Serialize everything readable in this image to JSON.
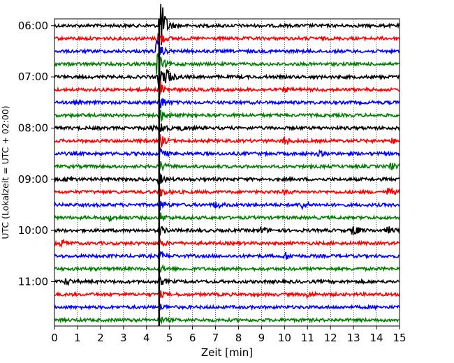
{
  "chart_data": {
    "type": "line",
    "title": "",
    "xlabel": "Zeit  [min]",
    "ylabel": "UTC (Lokalzeit = UTC + 02:00)",
    "xlim": [
      0,
      15
    ],
    "x_ticks": [
      0,
      1,
      2,
      3,
      4,
      5,
      6,
      7,
      8,
      9,
      10,
      11,
      12,
      13,
      14,
      15
    ],
    "y_ticks": [
      "06:00",
      "07:00",
      "08:00",
      "09:00",
      "10:00",
      "11:00"
    ],
    "y_time_range": [
      "05:52",
      "11:52"
    ],
    "trace_interval_min": 15,
    "grid": "vertical dotted lines at each minute",
    "colors_cycle": [
      "#000000",
      "#ff0000",
      "#0000ff",
      "#008000"
    ],
    "series": [
      {
        "start": "06:00",
        "color": "#000000",
        "events": [
          {
            "t": 4.6,
            "amp": 45
          }
        ]
      },
      {
        "start": "06:15",
        "color": "#ff0000",
        "events": [
          {
            "t": 4.5,
            "amp": 14
          }
        ]
      },
      {
        "start": "06:30",
        "color": "#0000ff",
        "events": [
          {
            "t": 4.45,
            "amp": 16
          }
        ]
      },
      {
        "start": "06:45",
        "color": "#008000",
        "events": [
          {
            "t": 4.45,
            "amp": 22
          }
        ]
      },
      {
        "start": "07:00",
        "color": "#000000",
        "events": [
          {
            "t": 4.55,
            "amp": 20
          },
          {
            "t": 4.9,
            "amp": 10
          }
        ]
      },
      {
        "start": "07:15",
        "color": "#ff0000",
        "events": [
          {
            "t": 4.6,
            "amp": 12
          },
          {
            "t": 10.0,
            "amp": 3
          }
        ]
      },
      {
        "start": "07:30",
        "color": "#0000ff",
        "events": [
          {
            "t": 4.6,
            "amp": 11
          }
        ]
      },
      {
        "start": "07:45",
        "color": "#008000",
        "events": [
          {
            "t": 4.6,
            "amp": 10
          }
        ]
      },
      {
        "start": "08:00",
        "color": "#000000",
        "events": [
          {
            "t": 4.15,
            "amp": 4
          },
          {
            "t": 4.6,
            "amp": 9
          },
          {
            "t": 5.5,
            "amp": 3
          }
        ]
      },
      {
        "start": "08:15",
        "color": "#ff0000",
        "events": [
          {
            "t": 4.6,
            "amp": 9
          },
          {
            "t": 10.0,
            "amp": 6
          },
          {
            "t": 14.7,
            "amp": 3
          }
        ]
      },
      {
        "start": "08:30",
        "color": "#0000ff",
        "events": [
          {
            "t": 4.6,
            "amp": 8
          },
          {
            "t": 11.5,
            "amp": 3
          }
        ]
      },
      {
        "start": "08:45",
        "color": "#008000",
        "events": [
          {
            "t": 4.6,
            "amp": 7
          },
          {
            "t": 14.6,
            "amp": 5
          }
        ]
      },
      {
        "start": "09:00",
        "color": "#000000",
        "events": [
          {
            "t": 4.55,
            "amp": 8
          },
          {
            "t": 0.6,
            "amp": 3
          }
        ]
      },
      {
        "start": "09:15",
        "color": "#ff0000",
        "events": [
          {
            "t": 4.6,
            "amp": 7
          },
          {
            "t": 14.5,
            "amp": 6
          },
          {
            "t": 10.0,
            "amp": 3
          }
        ]
      },
      {
        "start": "09:30",
        "color": "#0000ff",
        "events": [
          {
            "t": 4.6,
            "amp": 7
          },
          {
            "t": 7.0,
            "amp": 5
          },
          {
            "t": 10.7,
            "amp": 7
          }
        ]
      },
      {
        "start": "09:45",
        "color": "#008000",
        "events": [
          {
            "t": 2.4,
            "amp": 4
          },
          {
            "t": 4.6,
            "amp": 6
          }
        ]
      },
      {
        "start": "10:00",
        "color": "#000000",
        "events": [
          {
            "t": 4.6,
            "amp": 6
          },
          {
            "t": 9.0,
            "amp": 5
          },
          {
            "t": 13.0,
            "amp": 9
          },
          {
            "t": 14.5,
            "amp": 5
          }
        ]
      },
      {
        "start": "10:15",
        "color": "#ff0000",
        "events": [
          {
            "t": 0.3,
            "amp": 5
          },
          {
            "t": 4.6,
            "amp": 5
          }
        ]
      },
      {
        "start": "10:30",
        "color": "#0000ff",
        "events": [
          {
            "t": 4.6,
            "amp": 5
          },
          {
            "t": 10.0,
            "amp": 6
          }
        ]
      },
      {
        "start": "10:45",
        "color": "#008000",
        "events": [
          {
            "t": 4.6,
            "amp": 4
          }
        ]
      },
      {
        "start": "11:00",
        "color": "#000000",
        "events": [
          {
            "t": 0.5,
            "amp": 5
          },
          {
            "t": 4.6,
            "amp": 5
          }
        ]
      },
      {
        "start": "11:15",
        "color": "#ff0000",
        "events": [
          {
            "t": 4.6,
            "amp": 4
          },
          {
            "t": 11.0,
            "amp": 4
          }
        ]
      },
      {
        "start": "11:30",
        "color": "#0000ff",
        "events": [
          {
            "t": 4.6,
            "amp": 4
          }
        ]
      },
      {
        "start": "11:45",
        "color": "#008000",
        "events": [
          {
            "t": 4.6,
            "amp": 4
          }
        ]
      }
    ],
    "marker": {
      "t": 4.55,
      "color": "#000000"
    }
  }
}
